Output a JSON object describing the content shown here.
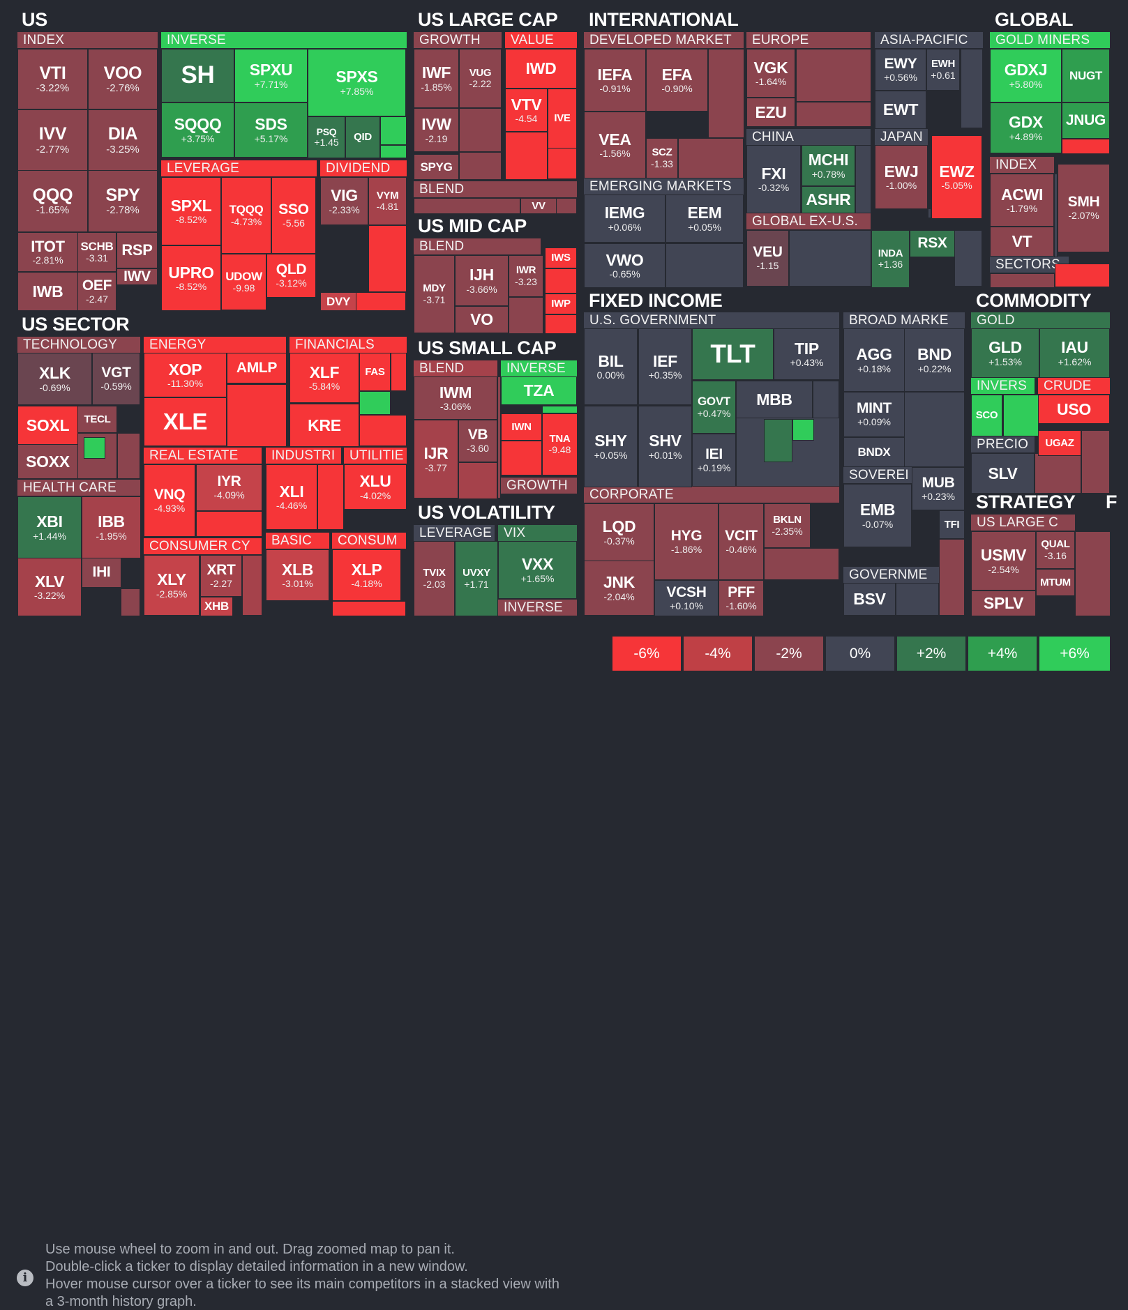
{
  "colors": {
    "background": "#262931",
    "neutral": "#414554",
    "scale": [
      "#f63538",
      "#bf4045",
      "#8b444e",
      "#414554",
      "#35764e",
      "#2f9e4f",
      "#30cc5a"
    ]
  },
  "legend": [
    "-6%",
    "-4%",
    "-2%",
    "0%",
    "+2%",
    "+4%",
    "+6%"
  ],
  "info": {
    "icon": "info-circle-icon",
    "lines": [
      "Use mouse wheel to zoom in and out. Drag zoomed map to pan it.",
      "Double-click a ticker to display detailed information in a new window.",
      "Hover mouse cursor over a ticker to see its main competitors in a stacked view with",
      "a 3-month history graph."
    ]
  },
  "groups": [
    "US",
    "US SECTOR",
    "US LARGE CAP",
    "US MID CAP",
    "US SMALL CAP",
    "US VOLATILITY",
    "INTERNATIONAL",
    "FIXED INCOME",
    "GLOBAL",
    "COMMODITY",
    "STRATEGY",
    "F"
  ],
  "subgroups": [
    "INDEX",
    "INVERSE",
    "LEVERAGE",
    "DIVIDEND",
    "TECHNOLOGY",
    "ENERGY",
    "FINANCIALS",
    "REAL ESTATE",
    "INDUSTRI",
    "UTILITIE",
    "HEALTH CARE",
    "CONSUMER CY",
    "BASIC",
    "CONSUM",
    "GROWTH",
    "VALUE",
    "BLEND",
    "BLEND",
    "BLEND",
    "INVERSE",
    "GROWTH",
    "LEVERAGE",
    "VIX",
    "INVERSE",
    "DEVELOPED MARKET",
    "EUROPE",
    "ASIA-PACIFIC",
    "CHINA",
    "JAPAN",
    "EMERGING MARKETS",
    "GLOBAL EX-U.S.",
    "U.S. GOVERNMENT",
    "BROAD MARKE",
    "MINT",
    "SOVEREI",
    "CORPORATE",
    "GOVERNME",
    "GOLD MINERS",
    "INDEX",
    "SECTORS",
    "GOLD",
    "INVERS",
    "CRUDE",
    "PRECIO",
    "US LARGE C"
  ],
  "tiles": [
    {
      "ticker": "VTI",
      "change": "-3.22%"
    },
    {
      "ticker": "VOO",
      "change": "-2.76%"
    },
    {
      "ticker": "IVV",
      "change": "-2.77%"
    },
    {
      "ticker": "DIA",
      "change": "-3.25%"
    },
    {
      "ticker": "QQQ",
      "change": "-1.65%"
    },
    {
      "ticker": "SPY",
      "change": "-2.78%"
    },
    {
      "ticker": "ITOT",
      "change": "-2.81%"
    },
    {
      "ticker": "SCHB",
      "change": "-3.31"
    },
    {
      "ticker": "RSP",
      "change": ""
    },
    {
      "ticker": "IWB",
      "change": ""
    },
    {
      "ticker": "OEF",
      "change": "-2.47"
    },
    {
      "ticker": "IWV",
      "change": ""
    },
    {
      "ticker": "SH",
      "change": ""
    },
    {
      "ticker": "SPXU",
      "change": "+7.71%"
    },
    {
      "ticker": "SPXS",
      "change": "+7.85%"
    },
    {
      "ticker": "SQQQ",
      "change": "+3.75%"
    },
    {
      "ticker": "SDS",
      "change": "+5.17%"
    },
    {
      "ticker": "PSQ",
      "change": "+1.45"
    },
    {
      "ticker": "QID",
      "change": ""
    },
    {
      "ticker": "SPXL",
      "change": "-8.52%"
    },
    {
      "ticker": "TQQQ",
      "change": "-4.73%"
    },
    {
      "ticker": "SSO",
      "change": "-5.56"
    },
    {
      "ticker": "UPRO",
      "change": "-8.52%"
    },
    {
      "ticker": "UDOW",
      "change": "-9.98"
    },
    {
      "ticker": "QLD",
      "change": "-3.12%"
    },
    {
      "ticker": "VIG",
      "change": "-2.33%"
    },
    {
      "ticker": "VYM",
      "change": "-4.81"
    },
    {
      "ticker": "DVY",
      "change": ""
    },
    {
      "ticker": "XLK",
      "change": "-0.69%"
    },
    {
      "ticker": "VGT",
      "change": "-0.59%"
    },
    {
      "ticker": "SOXL",
      "change": ""
    },
    {
      "ticker": "TECL",
      "change": ""
    },
    {
      "ticker": "SOXX",
      "change": ""
    },
    {
      "ticker": "XOP",
      "change": "-11.30%"
    },
    {
      "ticker": "AMLP",
      "change": ""
    },
    {
      "ticker": "XLE",
      "change": ""
    },
    {
      "ticker": "XLF",
      "change": "-5.84%"
    },
    {
      "ticker": "FAS",
      "change": ""
    },
    {
      "ticker": "KRE",
      "change": ""
    },
    {
      "ticker": "VNQ",
      "change": "-4.93%"
    },
    {
      "ticker": "IYR",
      "change": "-4.09%"
    },
    {
      "ticker": "XLI",
      "change": "-4.46%"
    },
    {
      "ticker": "XLU",
      "change": "-4.02%"
    },
    {
      "ticker": "XBI",
      "change": "+1.44%"
    },
    {
      "ticker": "IBB",
      "change": "-1.95%"
    },
    {
      "ticker": "XLV",
      "change": "-3.22%"
    },
    {
      "ticker": "IHI",
      "change": ""
    },
    {
      "ticker": "XLY",
      "change": "-2.85%"
    },
    {
      "ticker": "XRT",
      "change": "-2.27"
    },
    {
      "ticker": "XHB",
      "change": ""
    },
    {
      "ticker": "XLB",
      "change": "-3.01%"
    },
    {
      "ticker": "XLP",
      "change": "-4.18%"
    },
    {
      "ticker": "IWF",
      "change": "-1.85%"
    },
    {
      "ticker": "VUG",
      "change": "-2.22"
    },
    {
      "ticker": "IVW",
      "change": "-2.19"
    },
    {
      "ticker": "SPYG",
      "change": ""
    },
    {
      "ticker": "IWD",
      "change": ""
    },
    {
      "ticker": "VTV",
      "change": "-4.54"
    },
    {
      "ticker": "IVE",
      "change": ""
    },
    {
      "ticker": "VV",
      "change": ""
    },
    {
      "ticker": "MDY",
      "change": "-3.71"
    },
    {
      "ticker": "IJH",
      "change": "-3.66%"
    },
    {
      "ticker": "IWR",
      "change": "-3.23"
    },
    {
      "ticker": "VO",
      "change": ""
    },
    {
      "ticker": "IWS",
      "change": ""
    },
    {
      "ticker": "IWP",
      "change": ""
    },
    {
      "ticker": "IWM",
      "change": "-3.06%"
    },
    {
      "ticker": "IJR",
      "change": "-3.77"
    },
    {
      "ticker": "VB",
      "change": "-3.60"
    },
    {
      "ticker": "TZA",
      "change": ""
    },
    {
      "ticker": "IWN",
      "change": ""
    },
    {
      "ticker": "TNA",
      "change": "-9.48"
    },
    {
      "ticker": "TVIX",
      "change": "-2.03"
    },
    {
      "ticker": "UVXY",
      "change": "+1.71"
    },
    {
      "ticker": "VXX",
      "change": "+1.65%"
    },
    {
      "ticker": "IEFA",
      "change": "-0.91%"
    },
    {
      "ticker": "EFA",
      "change": "-0.90%"
    },
    {
      "ticker": "VEA",
      "change": "-1.56%"
    },
    {
      "ticker": "SCZ",
      "change": "-1.33"
    },
    {
      "ticker": "VGK",
      "change": "-1.64%"
    },
    {
      "ticker": "EZU",
      "change": ""
    },
    {
      "ticker": "EWY",
      "change": "+0.56%"
    },
    {
      "ticker": "EWH",
      "change": "+0.61"
    },
    {
      "ticker": "EWT",
      "change": ""
    },
    {
      "ticker": "FXI",
      "change": "-0.32%"
    },
    {
      "ticker": "MCHI",
      "change": "+0.78%"
    },
    {
      "ticker": "ASHR",
      "change": ""
    },
    {
      "ticker": "EWJ",
      "change": "-1.00%"
    },
    {
      "ticker": "EWZ",
      "change": "-5.05%"
    },
    {
      "ticker": "IEMG",
      "change": "+0.06%"
    },
    {
      "ticker": "EEM",
      "change": "+0.05%"
    },
    {
      "ticker": "VWO",
      "change": "-0.65%"
    },
    {
      "ticker": "VEU",
      "change": "-1.15"
    },
    {
      "ticker": "INDA",
      "change": "+1.36"
    },
    {
      "ticker": "RSX",
      "change": ""
    },
    {
      "ticker": "BIL",
      "change": "0.00%"
    },
    {
      "ticker": "IEF",
      "change": "+0.35%"
    },
    {
      "ticker": "TLT",
      "change": ""
    },
    {
      "ticker": "TIP",
      "change": "+0.43%"
    },
    {
      "ticker": "GOVT",
      "change": "+0.47%"
    },
    {
      "ticker": "MBB",
      "change": ""
    },
    {
      "ticker": "SHY",
      "change": "+0.05%"
    },
    {
      "ticker": "SHV",
      "change": "+0.01%"
    },
    {
      "ticker": "IEI",
      "change": "+0.19%"
    },
    {
      "ticker": "AGG",
      "change": "+0.18%"
    },
    {
      "ticker": "BND",
      "change": "+0.22%"
    },
    {
      "ticker": "MINT",
      "change": "+0.09%"
    },
    {
      "ticker": "BNDX",
      "change": ""
    },
    {
      "ticker": "EMB",
      "change": "-0.07%"
    },
    {
      "ticker": "MUB",
      "change": "+0.23%"
    },
    {
      "ticker": "TFI",
      "change": ""
    },
    {
      "ticker": "BSV",
      "change": ""
    },
    {
      "ticker": "LQD",
      "change": "-0.37%"
    },
    {
      "ticker": "HYG",
      "change": "-1.86%"
    },
    {
      "ticker": "VCIT",
      "change": "-0.46%"
    },
    {
      "ticker": "BKLN",
      "change": "-2.35%"
    },
    {
      "ticker": "JNK",
      "change": "-2.04%"
    },
    {
      "ticker": "VCSH",
      "change": "+0.10%"
    },
    {
      "ticker": "PFF",
      "change": "-1.60%"
    },
    {
      "ticker": "GDXJ",
      "change": "+5.80%"
    },
    {
      "ticker": "NUGT",
      "change": ""
    },
    {
      "ticker": "GDX",
      "change": "+4.89%"
    },
    {
      "ticker": "JNUG",
      "change": ""
    },
    {
      "ticker": "ACWI",
      "change": "-1.79%"
    },
    {
      "ticker": "SMH",
      "change": "-2.07%"
    },
    {
      "ticker": "VT",
      "change": ""
    },
    {
      "ticker": "GLD",
      "change": "+1.53%"
    },
    {
      "ticker": "IAU",
      "change": "+1.62%"
    },
    {
      "ticker": "SCO",
      "change": ""
    },
    {
      "ticker": "USO",
      "change": ""
    },
    {
      "ticker": "UGAZ",
      "change": ""
    },
    {
      "ticker": "SLV",
      "change": ""
    },
    {
      "ticker": "USMV",
      "change": "-2.54%"
    },
    {
      "ticker": "QUAL",
      "change": "-3.16"
    },
    {
      "ticker": "MTUM",
      "change": ""
    },
    {
      "ticker": "SPLV",
      "change": ""
    }
  ]
}
